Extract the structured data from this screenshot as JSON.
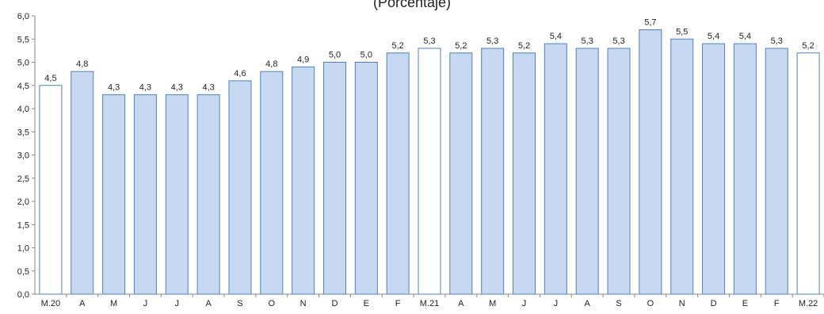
{
  "chart_data": {
    "type": "bar",
    "title": "(Porcentaje)",
    "categories": [
      "M.20",
      "A",
      "M",
      "J",
      "J",
      "A",
      "S",
      "O",
      "N",
      "D",
      "E",
      "F",
      "M.21",
      "A",
      "M",
      "J",
      "J",
      "A",
      "S",
      "O",
      "N",
      "D",
      "E",
      "F",
      "M.22"
    ],
    "values": [
      4.5,
      4.8,
      4.3,
      4.3,
      4.3,
      4.3,
      4.6,
      4.8,
      4.9,
      5.0,
      5.0,
      5.2,
      5.3,
      5.2,
      5.3,
      5.2,
      5.4,
      5.3,
      5.3,
      5.7,
      5.5,
      5.4,
      5.4,
      5.3,
      5.2
    ],
    "value_labels": [
      "4,5",
      "4,8",
      "4,3",
      "4,3",
      "4,3",
      "4,3",
      "4,6",
      "4,8",
      "4,9",
      "5,0",
      "5,0",
      "5,2",
      "5,3",
      "5,2",
      "5,3",
      "5,2",
      "5,4",
      "5,3",
      "5,3",
      "5,7",
      "5,5",
      "5,4",
      "5,4",
      "5,3",
      "5,2"
    ],
    "highlighted": [
      true,
      false,
      false,
      false,
      false,
      false,
      false,
      false,
      false,
      false,
      false,
      false,
      true,
      false,
      false,
      false,
      false,
      false,
      false,
      false,
      false,
      false,
      false,
      false,
      true
    ],
    "ylim": [
      0,
      6
    ],
    "yticks": [
      "0,0",
      "0,5",
      "1,0",
      "1,5",
      "2,0",
      "2,5",
      "3,0",
      "3,5",
      "4,0",
      "4,5",
      "5,0",
      "5,5",
      "6,0"
    ],
    "xlabel": "",
    "ylabel": "",
    "grid": false,
    "colors": {
      "bar_fill": "#c6d9f1",
      "highlight_fill": "#ffffff",
      "bar_stroke": "#4f81bd",
      "axis": "#888888"
    }
  }
}
